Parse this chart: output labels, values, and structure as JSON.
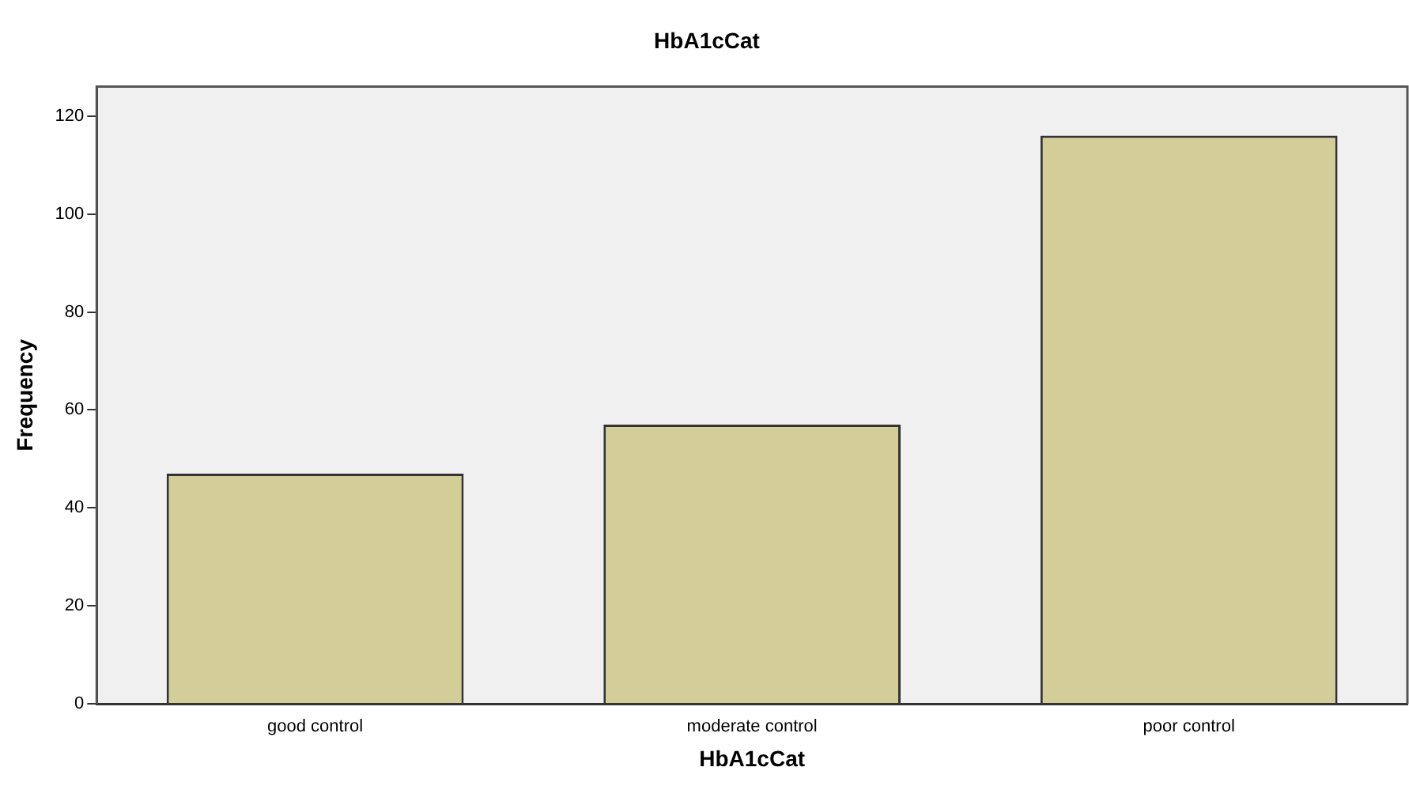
{
  "chart_data": {
    "type": "bar",
    "title": "HbA1cCat",
    "xlabel": "HbA1cCat",
    "ylabel": "Frequency",
    "categories": [
      "good control",
      "moderate control",
      "poor control"
    ],
    "values": [
      47,
      57,
      116
    ],
    "color": "#d3ce97",
    "ylim": [
      0,
      126
    ],
    "yticks": [
      0,
      20,
      40,
      60,
      80,
      100,
      120
    ],
    "grid": false,
    "legend": false
  }
}
